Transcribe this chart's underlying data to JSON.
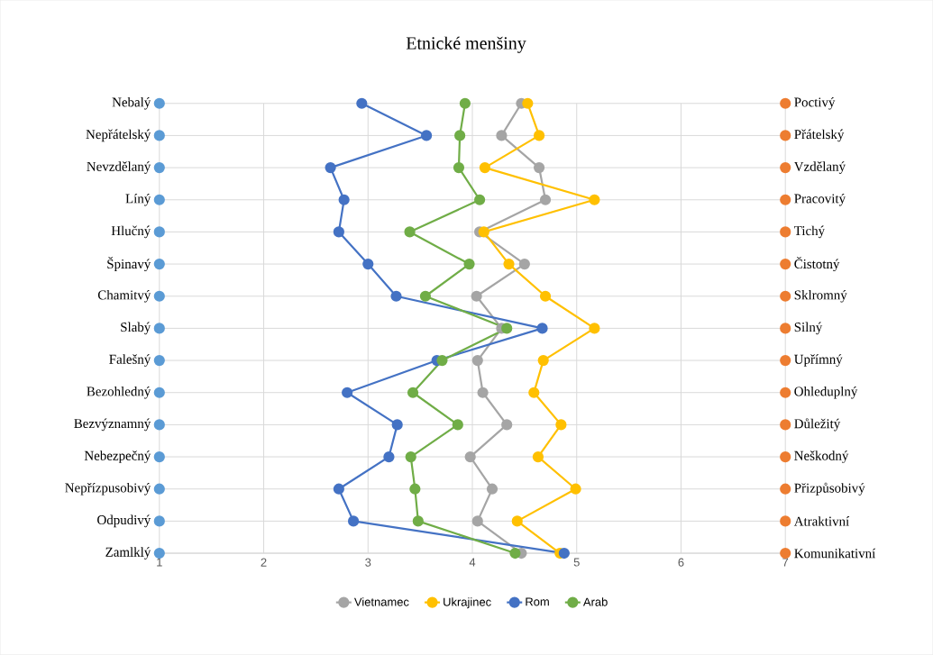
{
  "chart_data": {
    "type": "line",
    "orientation": "horizontal",
    "title": "Etnické menšiny",
    "categories": [
      "Nebalý",
      "Nepřátelský",
      "Nevzdělaný",
      "Líný",
      "Hlučný",
      "Špinavý",
      "Chamitvý",
      "Slabý",
      "Falešný",
      "Bezohledný",
      "Bezvýznamný",
      "Nebezpečný",
      "Nepřízpusobivý",
      "Odpudivý",
      "Zamlklý"
    ],
    "y2_categories": [
      "Poctivý",
      "Přátelský",
      "Vzdělaný",
      "Pracovitý",
      "Tichý",
      "Čistotný",
      "Sklromný",
      "Silný",
      "Upřímný",
      "Ohleduplný",
      "Důležitý",
      "Neškodný",
      "Přizpůsobivý",
      "Atraktivní",
      "Komunikativní"
    ],
    "xlim": [
      1,
      7
    ],
    "xticks": [
      1,
      2,
      3,
      4,
      5,
      6,
      7
    ],
    "grid": true,
    "legend": "bottom",
    "marker": "circle",
    "series": [
      {
        "type": "scatter",
        "color": "#5b9bd5",
        "values": [
          1,
          1,
          1,
          1,
          1,
          1,
          1,
          1,
          1,
          1,
          1,
          1,
          1,
          1,
          1
        ]
      },
      {
        "type": "scatter",
        "color": "#ed7d31",
        "values": [
          7,
          7,
          7,
          7,
          7,
          7,
          7,
          7,
          7,
          7,
          7,
          7,
          7,
          7,
          7
        ]
      },
      {
        "name": "Vietnamec",
        "color": "#a5a5a5",
        "values": [
          4.47,
          4.28,
          4.64,
          4.7,
          4.07,
          4.5,
          4.04,
          4.28,
          4.05,
          4.1,
          4.33,
          3.98,
          4.19,
          4.05,
          4.47
        ]
      },
      {
        "name": "Ukrajinec",
        "color": "#ffc000",
        "values": [
          4.53,
          4.64,
          4.12,
          5.17,
          4.11,
          4.35,
          4.7,
          5.17,
          4.68,
          4.59,
          4.85,
          4.63,
          4.99,
          4.43,
          4.84
        ]
      },
      {
        "name": "Rom",
        "color": "#4472c4",
        "values": [
          2.94,
          3.56,
          2.64,
          2.77,
          2.72,
          3.0,
          3.27,
          4.67,
          3.66,
          2.8,
          3.28,
          3.2,
          2.72,
          2.86,
          4.88
        ]
      },
      {
        "name": "Arab",
        "color": "#70ad47",
        "values": [
          3.93,
          3.88,
          3.87,
          4.07,
          3.4,
          3.97,
          3.55,
          4.33,
          3.71,
          3.43,
          3.86,
          3.41,
          3.45,
          3.48,
          4.41
        ]
      }
    ]
  }
}
